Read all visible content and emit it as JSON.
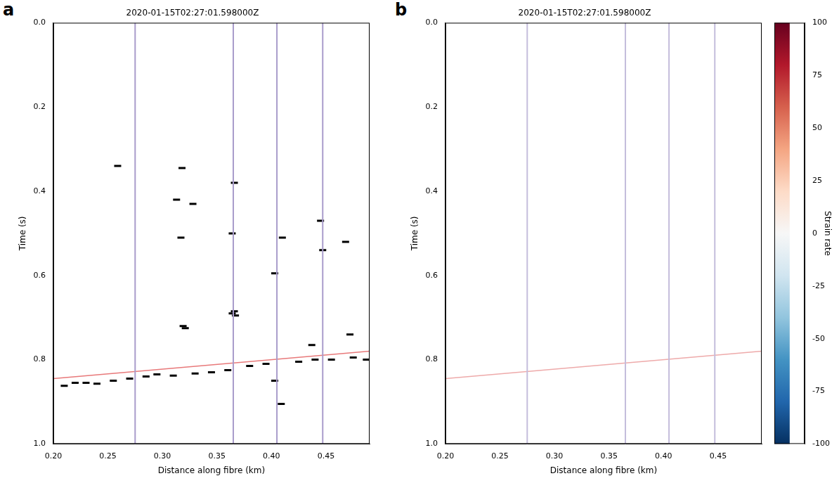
{
  "chart_data": [
    {
      "type": "heatmap",
      "panel": "a",
      "title": "2020-01-15T02:27:01.598000Z",
      "x_label": "Distance along fibre (km)",
      "y_label": "Time (s)",
      "xlim": [
        0.2,
        0.49
      ],
      "ylim": [
        1.0,
        0.0
      ],
      "grid": false,
      "xticks": [
        {
          "value": 0.2,
          "label": "0.20"
        },
        {
          "value": 0.25,
          "label": "0.25"
        },
        {
          "value": 0.3,
          "label": "0.30"
        },
        {
          "value": 0.35,
          "label": "0.35"
        },
        {
          "value": 0.4,
          "label": "0.40"
        },
        {
          "value": 0.45,
          "label": "0.45"
        }
      ],
      "yticks": [
        {
          "value": 0.0,
          "label": "0.0"
        },
        {
          "value": 0.2,
          "label": "0.2"
        },
        {
          "value": 0.4,
          "label": "0.4"
        },
        {
          "value": 0.6,
          "label": "0.6"
        },
        {
          "value": 0.8,
          "label": "0.8"
        },
        {
          "value": 1.0,
          "label": "1.0"
        }
      ],
      "stripes": {
        "x": [
          0.275,
          0.365,
          0.405,
          0.447
        ],
        "color": "#a99ccb"
      },
      "event": {
        "x": [
          0.2,
          0.49
        ],
        "y": [
          0.845,
          0.78
        ],
        "color": "#e8797a"
      },
      "picks": {
        "color": "#000000",
        "marker": "line",
        "x": [
          0.259,
          0.318,
          0.313,
          0.328,
          0.317,
          0.366,
          0.364,
          0.41,
          0.445,
          0.447,
          0.468,
          0.403,
          0.319,
          0.321,
          0.366,
          0.364,
          0.367,
          0.472,
          0.437,
          0.403,
          0.409,
          0.21,
          0.22,
          0.23,
          0.24,
          0.255,
          0.27,
          0.285,
          0.295,
          0.31,
          0.33,
          0.345,
          0.36,
          0.38,
          0.395,
          0.425,
          0.44,
          0.455,
          0.475,
          0.487
        ],
        "y": [
          0.34,
          0.345,
          0.42,
          0.43,
          0.51,
          0.38,
          0.5,
          0.51,
          0.47,
          0.54,
          0.52,
          0.595,
          0.72,
          0.725,
          0.685,
          0.69,
          0.695,
          0.74,
          0.765,
          0.85,
          0.905,
          0.862,
          0.855,
          0.855,
          0.857,
          0.85,
          0.845,
          0.84,
          0.835,
          0.838,
          0.833,
          0.83,
          0.825,
          0.815,
          0.81,
          0.805,
          0.8,
          0.8,
          0.795,
          0.8
        ]
      }
    },
    {
      "type": "heatmap",
      "panel": "b",
      "title": "2020-01-15T02:27:01.598000Z",
      "x_label": "Distance along fibre (km)",
      "y_label": "Time (s)",
      "xlim": [
        0.2,
        0.49
      ],
      "ylim": [
        1.0,
        0.0
      ],
      "grid": false,
      "xticks": [
        {
          "value": 0.2,
          "label": "0.20"
        },
        {
          "value": 0.25,
          "label": "0.25"
        },
        {
          "value": 0.3,
          "label": "0.30"
        },
        {
          "value": 0.35,
          "label": "0.35"
        },
        {
          "value": 0.4,
          "label": "0.40"
        },
        {
          "value": 0.45,
          "label": "0.45"
        }
      ],
      "yticks": [
        {
          "value": 0.0,
          "label": "0.0"
        },
        {
          "value": 0.2,
          "label": "0.2"
        },
        {
          "value": 0.4,
          "label": "0.4"
        },
        {
          "value": 0.6,
          "label": "0.6"
        },
        {
          "value": 0.8,
          "label": "0.8"
        },
        {
          "value": 1.0,
          "label": "1.0"
        }
      ],
      "stripes": {
        "x": [
          0.275,
          0.365,
          0.405,
          0.447
        ],
        "color": "#c4bddc"
      },
      "event": {
        "x": [
          0.2,
          0.49
        ],
        "y": [
          0.845,
          0.78
        ],
        "color": "#eeaaaa"
      },
      "colorbar": {
        "label": "Strain rate",
        "range": [
          -100,
          100
        ],
        "ticks": [
          -100,
          -75,
          -50,
          -25,
          0,
          25,
          50,
          75,
          100
        ]
      }
    }
  ]
}
